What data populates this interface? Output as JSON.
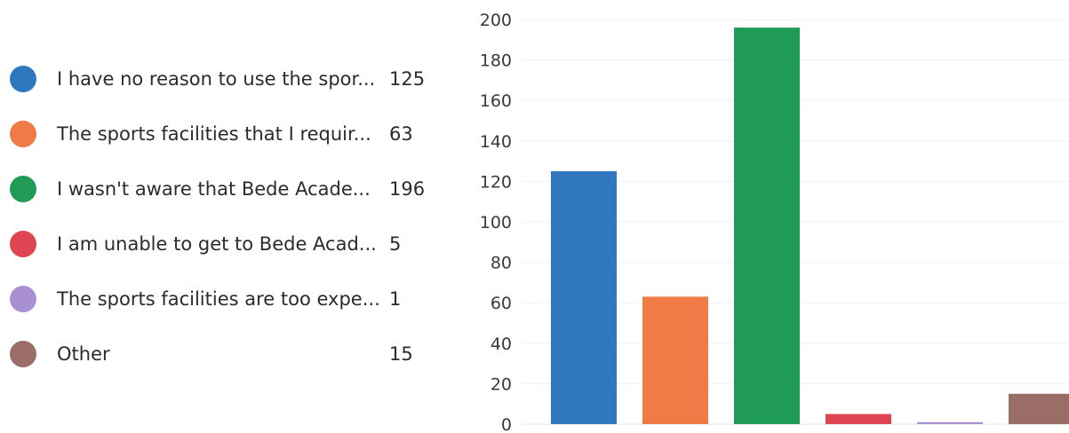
{
  "chart_data": {
    "type": "bar",
    "categories": [
      "I have no reason to use the spor...",
      "The sports facilities that I requir...",
      "I wasn't aware that Bede Acade...",
      "I am unable to get to Bede Acad...",
      "The sports facilities are too expe...",
      "Other"
    ],
    "values": [
      125,
      63,
      196,
      5,
      1,
      15
    ],
    "colors": [
      "#2f78bf",
      "#ef7b47",
      "#1f9b56",
      "#e04352",
      "#a98fd3",
      "#9a6d66"
    ],
    "ylim": [
      0,
      200
    ],
    "yticks": [
      0,
      20,
      40,
      60,
      80,
      100,
      120,
      140,
      160,
      180,
      200
    ],
    "grid": true,
    "legend_position": "left"
  }
}
